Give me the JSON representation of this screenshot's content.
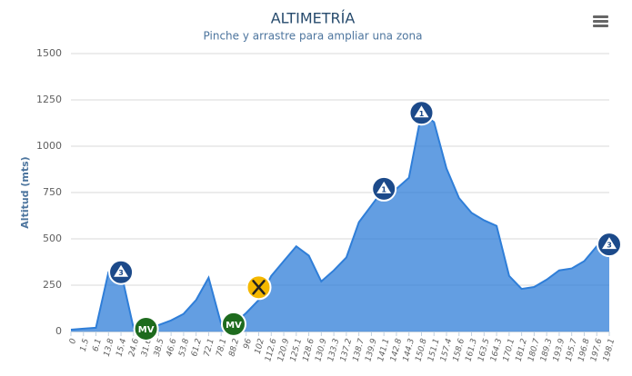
{
  "chart_data": {
    "type": "area",
    "title": "ALTIMETRÍA",
    "subtitle": "Pinche y arrastre para ampliar una zona",
    "y_label": "Altitud (mts)",
    "color": "#2f7ed8",
    "grid": true,
    "ylim": [
      0,
      1500
    ],
    "yticks": [
      0,
      250,
      500,
      750,
      1000,
      1250,
      1500
    ],
    "categories": [
      "0",
      "1.5",
      "6.1",
      "13.8",
      "15.4",
      "24.6",
      "31.6",
      "38.5",
      "46.6",
      "53.8",
      "61.2",
      "72.1",
      "78.1",
      "88.2",
      "96",
      "102",
      "112.6",
      "120.9",
      "125.1",
      "128.6",
      "130.9",
      "133.3",
      "137.2",
      "138.7",
      "139.9",
      "141.1",
      "142.8",
      "144.3",
      "150.8",
      "151.1",
      "157.4",
      "158.6",
      "161.3",
      "163.5",
      "164.3",
      "170.1",
      "181.2",
      "180.7",
      "189.3",
      "193.9",
      "195.7",
      "196.8",
      "197.6",
      "198.1"
    ],
    "values": [
      10,
      15,
      20,
      320,
      320,
      20,
      15,
      35,
      60,
      95,
      170,
      290,
      40,
      40,
      100,
      170,
      300,
      380,
      460,
      410,
      270,
      330,
      400,
      590,
      680,
      770,
      770,
      830,
      1180,
      1130,
      880,
      720,
      640,
      600,
      570,
      300,
      230,
      240,
      280,
      330,
      340,
      380,
      460,
      470
    ],
    "markers": [
      {
        "index": 4,
        "kind": "summit",
        "label": "3"
      },
      {
        "index": 6,
        "kind": "mv",
        "label": "MV"
      },
      {
        "index": 13,
        "kind": "mv",
        "label": "MV"
      },
      {
        "index": 15,
        "kind": "food"
      },
      {
        "index": 25,
        "kind": "summit",
        "label": "1"
      },
      {
        "index": 28,
        "kind": "summit",
        "label": "1"
      },
      {
        "index": 43,
        "kind": "summit",
        "label": "3"
      }
    ]
  }
}
